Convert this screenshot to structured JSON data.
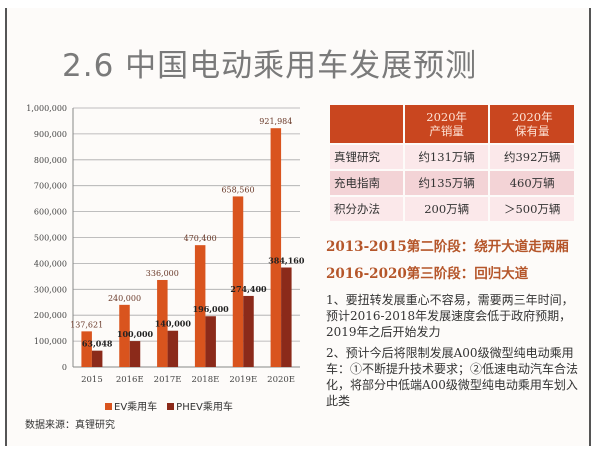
{
  "title": "2.6 中国电动乘用车发展预测",
  "chart_data": {
    "type": "bar",
    "categories": [
      "2015",
      "2016E",
      "2017E",
      "2018E",
      "2019E",
      "2020E"
    ],
    "series": [
      {
        "name": "EV乘用车",
        "color": "#d9541e",
        "values": [
          137621,
          240000,
          336000,
          470400,
          658560,
          921984
        ],
        "labels": [
          "137,621",
          "240,000",
          "336,000",
          "470,400",
          "658,560",
          "921,984"
        ]
      },
      {
        "name": "PHEV乘用车",
        "color": "#8b2a1a",
        "values": [
          63048,
          100000,
          140000,
          196000,
          274400,
          384160
        ],
        "labels": [
          "63,048",
          "100,000",
          "140,000",
          "196,000",
          "274,400",
          "384,160"
        ]
      }
    ],
    "ylim": [
      0,
      1000000
    ],
    "yticks": [
      "0",
      "100,000",
      "200,000",
      "300,000",
      "400,000",
      "500,000",
      "600,000",
      "700,000",
      "800,000",
      "900,000",
      "1,000,000"
    ],
    "grid": true,
    "legend": "bottom"
  },
  "source": "数据来源：真锂研究",
  "table": {
    "headers": [
      "",
      "2020年\n产销量",
      "2020年\n保有量"
    ],
    "rows": [
      [
        "真锂研究",
        "约131万辆",
        "约392万辆"
      ],
      [
        "充电指南",
        "约135万辆",
        "460万辆"
      ],
      [
        "积分办法",
        "200万辆",
        "＞500万辆"
      ]
    ]
  },
  "stage1": "2013-2015第二阶段：绕开大道走两厢",
  "stage2": "2016-2020第三阶段：回归大道",
  "para1": "1、要扭转发展重心不容易，需要两三年时间，预计2016-2018年发展速度会低于政府预期，2019年之后开始发力",
  "para2": "2、预计今后将限制发展A00级微型纯电动乘用车：①不断提升技术要求；②低速电动汽车合法化，将部分中低端A00级微型纯电动乘用车划入此类"
}
